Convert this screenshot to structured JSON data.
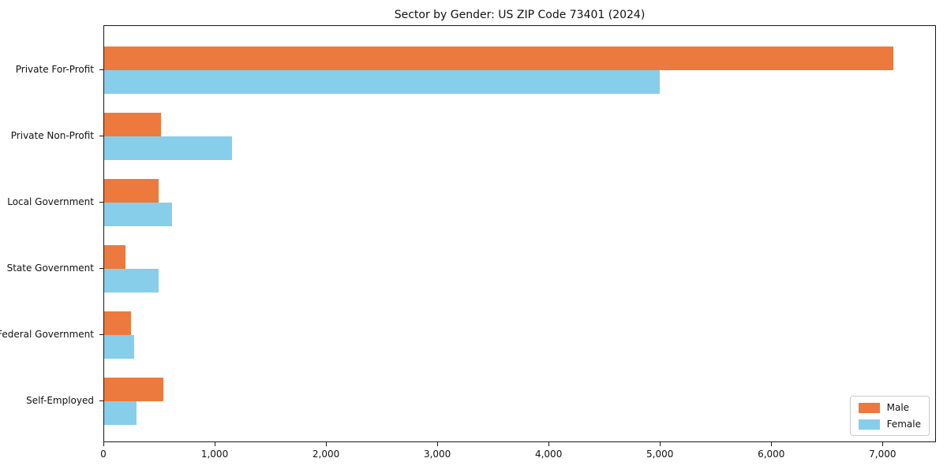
{
  "chart_data": {
    "type": "bar",
    "orientation": "horizontal",
    "title": "Sector by Gender: US ZIP Code 73401 (2024)",
    "categories": [
      "Private For-Profit",
      "Private Non-Profit",
      "Local Government",
      "State Government",
      "Federal Government",
      "Self-Employed"
    ],
    "series": [
      {
        "name": "Male",
        "color": "#EC7A3E",
        "values": [
          7100,
          510,
          490,
          190,
          240,
          530
        ]
      },
      {
        "name": "Female",
        "color": "#87CEEB",
        "values": [
          5000,
          1150,
          610,
          490,
          270,
          290
        ]
      }
    ],
    "xlim": [
      0,
      7480
    ],
    "xticks": [
      {
        "value": 0,
        "label": "0"
      },
      {
        "value": 1000,
        "label": "1,000"
      },
      {
        "value": 2000,
        "label": "2,000"
      },
      {
        "value": 3000,
        "label": "3,000"
      },
      {
        "value": 4000,
        "label": "4,000"
      },
      {
        "value": 5000,
        "label": "5,000"
      },
      {
        "value": 6000,
        "label": "6,000"
      },
      {
        "value": 7000,
        "label": "7,000"
      }
    ],
    "legend_position": "lower right",
    "grid": false,
    "colors": {
      "male": "#EC7A3E",
      "female": "#87CEEB",
      "axis": "#1a1a1a",
      "legend_border": "#cccccc"
    }
  }
}
